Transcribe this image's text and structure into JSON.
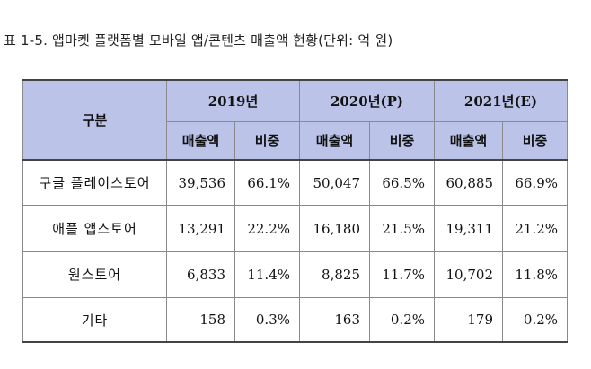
{
  "caption": "표 1-5. 앱마켓 플랫폼별 모바일 앱/콘텐츠 매출액 현황(단위: 억 원)",
  "table": {
    "corner_label": "구분",
    "years": [
      "2019년",
      "2020년(P)",
      "2021년(E)"
    ],
    "sub_headers": [
      "매출액",
      "비중",
      "매출액",
      "비중",
      "매출액",
      "비중"
    ],
    "rows": [
      {
        "label": "구글 플레이스토어",
        "cells": [
          "39,536",
          "66.1%",
          "50,047",
          "66.5%",
          "60,885",
          "66.9%"
        ]
      },
      {
        "label": "애플 앱스토어",
        "cells": [
          "13,291",
          "22.2%",
          "16,180",
          "21.5%",
          "19,311",
          "21.2%"
        ]
      },
      {
        "label": "원스토어",
        "cells": [
          "6,833",
          "11.4%",
          "8,825",
          "11.7%",
          "10,702",
          "11.8%"
        ]
      },
      {
        "label": "기타",
        "cells": [
          "158",
          "0.3%",
          "163",
          "0.2%",
          "179",
          "0.2%"
        ]
      }
    ]
  },
  "colors": {
    "header_bg": "#bcc3e9",
    "border": "#8a8a8a"
  }
}
